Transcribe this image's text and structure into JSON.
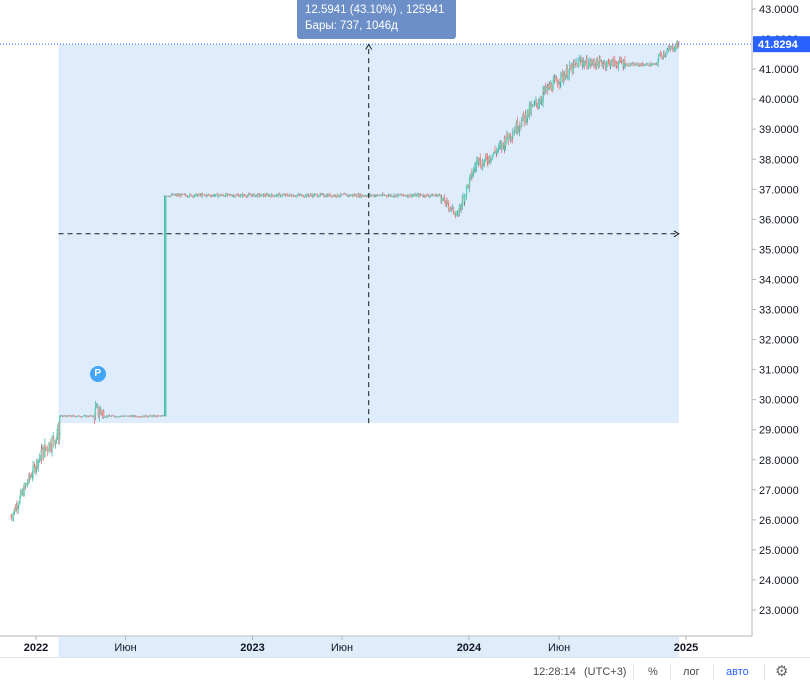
{
  "chart_data": {
    "type": "candlestick",
    "title": "",
    "xlabel": "",
    "ylabel": "",
    "ylim": [
      22.0,
      43.4
    ],
    "y_ticks": [
      "43.0000",
      "42.0000",
      "41.0000",
      "40.0000",
      "39.0000",
      "38.0000",
      "37.0000",
      "36.0000",
      "35.0000",
      "34.0000",
      "33.0000",
      "32.0000",
      "31.0000",
      "30.0000",
      "29.0000",
      "28.0000",
      "27.0000",
      "26.0000",
      "25.0000",
      "24.0000",
      "23.0000"
    ],
    "x_ticks": [
      {
        "label": "2022",
        "date": "2022-01-01",
        "bold": true
      },
      {
        "label": "Июн",
        "date": "2022-06-01",
        "bold": false
      },
      {
        "label": "2023",
        "date": "2023-01-01",
        "bold": true
      },
      {
        "label": "Июн",
        "date": "2023-06-01",
        "bold": false
      },
      {
        "label": "2024",
        "date": "2024-01-01",
        "bold": true
      },
      {
        "label": "Июн",
        "date": "2024-06-01",
        "bold": false
      },
      {
        "label": "2025",
        "date": "2025-01-01",
        "bold": true
      }
    ],
    "last_price": 41.8294,
    "last_price_label": "41.8294",
    "segments": [
      {
        "start": "2021-11-20",
        "end": "2022-01-10",
        "from": 26.1,
        "to": 28.2,
        "vol": 0.18
      },
      {
        "start": "2022-01-10",
        "end": "2022-02-10",
        "from": 28.2,
        "to": 28.9,
        "vol": 0.25
      },
      {
        "start": "2022-02-10",
        "end": "2022-04-10",
        "from": 29.45,
        "to": 29.45,
        "vol": 0.03
      },
      {
        "start": "2022-04-10",
        "end": "2022-04-25",
        "from": 29.6,
        "to": 29.6,
        "vol": 0.25
      },
      {
        "start": "2022-04-25",
        "end": "2022-08-05",
        "from": 29.45,
        "to": 29.45,
        "vol": 0.03
      },
      {
        "start": "2022-08-08",
        "end": "2023-11-15",
        "from": 36.8,
        "to": 36.8,
        "vol": 0.05
      },
      {
        "start": "2023-11-15",
        "end": "2023-12-15",
        "from": 36.7,
        "to": 36.1,
        "vol": 0.12
      },
      {
        "start": "2023-12-15",
        "end": "2024-01-20",
        "from": 36.3,
        "to": 38.2,
        "vol": 0.18
      },
      {
        "start": "2024-01-20",
        "end": "2024-03-01",
        "from": 37.8,
        "to": 38.5,
        "vol": 0.18
      },
      {
        "start": "2024-03-01",
        "end": "2024-05-05",
        "from": 38.6,
        "to": 40.1,
        "vol": 0.2
      },
      {
        "start": "2024-05-05",
        "end": "2024-07-10",
        "from": 40.2,
        "to": 41.3,
        "vol": 0.18
      },
      {
        "start": "2024-07-10",
        "end": "2024-09-20",
        "from": 41.2,
        "to": 41.2,
        "vol": 0.15
      },
      {
        "start": "2024-09-20",
        "end": "2024-11-15",
        "from": 41.15,
        "to": 41.15,
        "vol": 0.05
      },
      {
        "start": "2024-11-15",
        "end": "2024-12-20",
        "from": 41.4,
        "to": 41.83,
        "vol": 0.12
      }
    ],
    "measure": {
      "start": "2022-02-08",
      "end": "2024-12-20",
      "low": 29.22,
      "high": 41.82,
      "line1": "12.5941 (43.10%) , 125941",
      "line2": "Бары: 737, 1046д"
    },
    "step_jump": {
      "date": "2022-08-06",
      "from": 29.45,
      "to": 36.8
    },
    "marker": {
      "date": "2022-04-15",
      "price": 30.85,
      "label": "P"
    },
    "colors": {
      "up": "#26a69a",
      "up_fill": "#5fd4b8",
      "down": "#ef5350",
      "down_fill": "#f19999",
      "range": "#deecfc",
      "range_line": "#1a1a1a",
      "last": "#2962ff",
      "tooltip": "#6c8fc7"
    }
  },
  "bottom_bar": {
    "time": "12:28:14",
    "timezone": "(UTC+3)",
    "percent": "%",
    "log": "лог",
    "auto": "авто"
  }
}
